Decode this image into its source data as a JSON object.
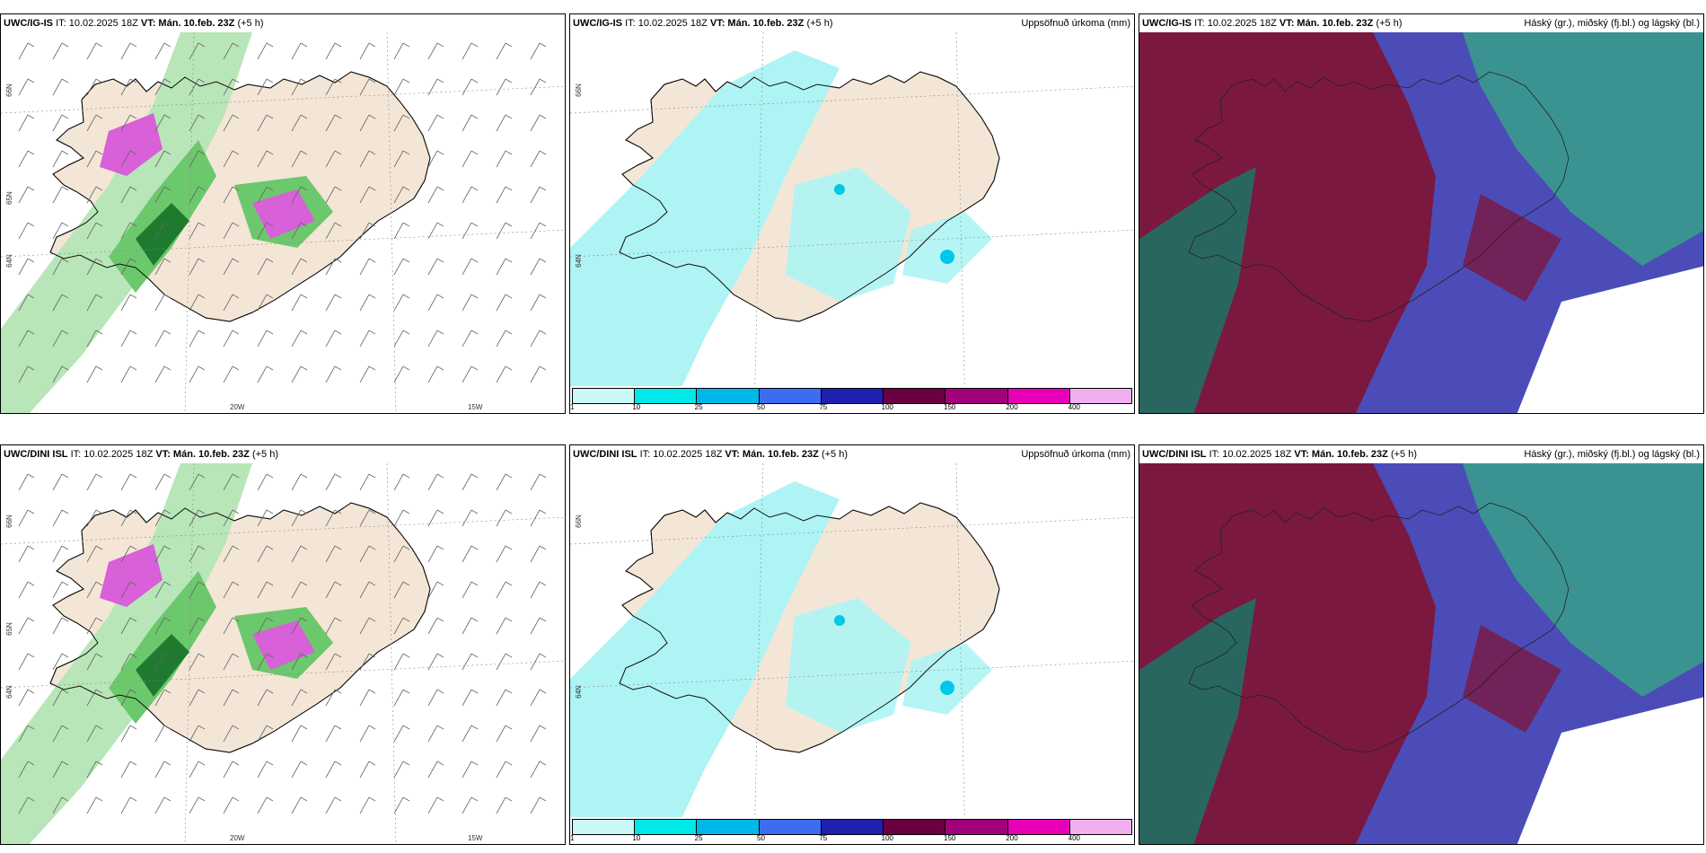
{
  "panels": [
    {
      "model": "UWC/IG-IS",
      "it": "IT: 10.02.2025 18Z",
      "vt": "VT: Mán. 10.feb. 23Z",
      "lead": "(+5 h)",
      "title": "",
      "type": "wind",
      "lat_labels": [
        "66N",
        "64N",
        "65N"
      ],
      "lon_labels": [
        "20W",
        "15W"
      ]
    },
    {
      "model": "UWC/IG-IS",
      "it": "IT: 10.02.2025 18Z",
      "vt": "VT: Mán. 10.feb. 23Z",
      "lead": "(+5 h)",
      "title": "Uppsöfnuð úrkoma (mm)",
      "type": "precip",
      "lat_labels": [
        "66N",
        "64N"
      ],
      "lon_labels": []
    },
    {
      "model": "UWC/IG-IS",
      "it": "IT: 10.02.2025 18Z",
      "vt": "VT: Mán. 10.feb. 23Z",
      "lead": "(+5 h)",
      "title": "Háský (gr.), miðský (fj.bl.) og lágský (bl.)",
      "type": "cloud",
      "lat_labels": [],
      "lon_labels": []
    },
    {
      "model": "UWC/DINI ISL",
      "it": "IT: 10.02.2025 18Z",
      "vt": "VT: Mán. 10.feb. 23Z",
      "lead": "(+5 h)",
      "title": "",
      "type": "wind",
      "lat_labels": [
        "66N",
        "64N",
        "65N"
      ],
      "lon_labels": [
        "20W",
        "15W"
      ]
    },
    {
      "model": "UWC/DINI ISL",
      "it": "IT: 10.02.2025 18Z",
      "vt": "VT: Mán. 10.feb. 23Z",
      "lead": "(+5 h)",
      "title": "Uppsöfnuð úrkoma (mm)",
      "type": "precip",
      "lat_labels": [
        "66N",
        "64N"
      ],
      "lon_labels": []
    },
    {
      "model": "UWC/DINI ISL",
      "it": "IT: 10.02.2025 18Z",
      "vt": "VT: Mán. 10.feb. 23Z",
      "lead": "(+5 h)",
      "title": "Háský (gr.), miðský (fj.bl.) og lágský (bl.)",
      "type": "cloud",
      "lat_labels": [],
      "lon_labels": []
    }
  ],
  "legend": {
    "ticks": [
      "1",
      "10",
      "25",
      "50",
      "75",
      "100",
      "150",
      "200",
      "400"
    ],
    "colors": [
      "#c8f8f8",
      "#00e8e8",
      "#00b8e8",
      "#3c6cf0",
      "#2020b0",
      "#6a0040",
      "#a0007a",
      "#e800b8",
      "#f0b0f0"
    ]
  },
  "colors": {
    "land": "#f4e6d6",
    "sea": "#ffffff",
    "precip_light": "#aef4f4",
    "green_light": "#b8e6b8",
    "green_mid": "#6cc86c",
    "green_dark": "#1e7a2e",
    "magenta": "#d860d8",
    "cloud_high": "#7a1840",
    "cloud_mid": "#4c4cb8",
    "cloud_low": "#38a08a"
  }
}
